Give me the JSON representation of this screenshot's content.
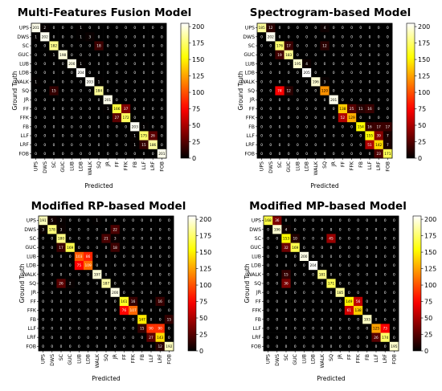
{
  "chart_data": [
    {
      "type": "heatmap",
      "title": "Multi-Features Fusion Model",
      "xlabel": "Predicted",
      "ylabel": "Ground Truth",
      "labels": [
        "UPS",
        "DWS",
        "SC",
        "GUC",
        "LUB",
        "LDB",
        "WALK",
        "SQ",
        "JR",
        "FF",
        "FFK",
        "FB",
        "LLF",
        "LRF",
        "FOB"
      ],
      "colorbar_ticks": [
        0,
        25,
        50,
        75,
        100,
        125,
        150,
        175,
        200
      ],
      "vmax": 205,
      "matrix": [
        [
          201,
          2,
          0,
          0,
          0,
          1,
          0,
          0,
          0,
          0,
          0,
          0,
          0,
          0,
          0
        ],
        [
          1,
          202,
          0,
          0,
          0,
          1,
          3,
          0,
          0,
          0,
          0,
          0,
          0,
          0,
          0
        ],
        [
          0,
          0,
          182,
          0,
          0,
          0,
          0,
          18,
          0,
          0,
          0,
          0,
          0,
          0,
          0
        ],
        [
          0,
          0,
          1,
          198,
          0,
          0,
          0,
          0,
          0,
          0,
          0,
          0,
          0,
          0,
          0
        ],
        [
          0,
          0,
          0,
          0,
          200,
          1,
          0,
          0,
          0,
          0,
          0,
          0,
          0,
          0,
          0
        ],
        [
          0,
          0,
          0,
          0,
          0,
          204,
          0,
          0,
          0,
          0,
          0,
          0,
          0,
          0,
          0
        ],
        [
          1,
          0,
          0,
          0,
          0,
          0,
          203,
          1,
          0,
          0,
          0,
          0,
          0,
          0,
          0
        ],
        [
          0,
          0,
          15,
          0,
          0,
          0,
          0,
          184,
          0,
          0,
          0,
          0,
          0,
          0,
          0
        ],
        [
          0,
          0,
          0,
          0,
          0,
          0,
          0,
          0,
          201,
          0,
          0,
          0,
          0,
          0,
          0
        ],
        [
          0,
          0,
          0,
          0,
          0,
          0,
          0,
          0,
          1,
          166,
          37,
          0,
          0,
          0,
          0
        ],
        [
          0,
          0,
          0,
          0,
          0,
          0,
          0,
          0,
          0,
          27,
          172,
          0,
          0,
          0,
          0
        ],
        [
          0,
          0,
          0,
          0,
          0,
          0,
          0,
          0,
          0,
          0,
          0,
          203,
          1,
          0,
          0
        ],
        [
          0,
          0,
          0,
          0,
          0,
          0,
          0,
          0,
          0,
          0,
          0,
          1,
          175,
          26,
          0
        ],
        [
          0,
          0,
          0,
          0,
          0,
          0,
          0,
          0,
          0,
          0,
          0,
          1,
          15,
          186,
          0
        ],
        [
          0,
          0,
          0,
          0,
          0,
          0,
          0,
          0,
          0,
          0,
          0,
          0,
          0,
          0,
          201
        ]
      ]
    },
    {
      "type": "heatmap",
      "title": "Spectrogram-based Model",
      "xlabel": "Predicted",
      "ylabel": "Ground Truth",
      "labels": [
        "UPS",
        "DWS",
        "SC",
        "GUC",
        "LUB",
        "LDB",
        "WALK",
        "SQ",
        "JR",
        "FF",
        "FFK",
        "FB",
        "LLF",
        "LRF",
        "FOB"
      ],
      "colorbar_ticks": [
        0,
        25,
        50,
        75,
        100,
        125,
        150,
        175,
        200
      ],
      "vmax": 205,
      "matrix": [
        [
          185,
          12,
          0,
          0,
          0,
          0,
          0,
          4,
          0,
          0,
          0,
          0,
          0,
          0,
          0
        ],
        [
          0,
          202,
          0,
          0,
          0,
          0,
          0,
          0,
          0,
          0,
          0,
          0,
          0,
          0,
          0
        ],
        [
          0,
          0,
          176,
          17,
          0,
          0,
          0,
          12,
          0,
          0,
          0,
          0,
          0,
          0,
          0
        ],
        [
          0,
          0,
          19,
          183,
          0,
          0,
          0,
          0,
          0,
          0,
          0,
          0,
          0,
          0,
          0
        ],
        [
          0,
          0,
          0,
          0,
          195,
          4,
          0,
          0,
          0,
          0,
          0,
          0,
          0,
          0,
          0
        ],
        [
          0,
          0,
          0,
          0,
          0,
          205,
          0,
          0,
          0,
          0,
          0,
          0,
          0,
          0,
          0
        ],
        [
          0,
          0,
          0,
          0,
          0,
          0,
          196,
          3,
          0,
          0,
          0,
          0,
          0,
          0,
          0
        ],
        [
          0,
          0,
          74,
          12,
          0,
          0,
          0,
          120,
          0,
          0,
          0,
          0,
          0,
          0,
          0
        ],
        [
          0,
          0,
          0,
          0,
          0,
          0,
          0,
          0,
          201,
          0,
          0,
          0,
          0,
          0,
          0
        ],
        [
          0,
          0,
          0,
          0,
          0,
          0,
          0,
          0,
          0,
          138,
          25,
          11,
          16,
          0,
          0
        ],
        [
          0,
          0,
          0,
          0,
          0,
          0,
          0,
          0,
          0,
          52,
          129,
          0,
          0,
          0,
          0
        ],
        [
          0,
          0,
          0,
          0,
          0,
          0,
          0,
          0,
          0,
          0,
          0,
          154,
          16,
          17,
          17
        ],
        [
          0,
          0,
          0,
          0,
          0,
          0,
          0,
          0,
          0,
          0,
          0,
          0,
          155,
          39,
          7
        ],
        [
          0,
          0,
          0,
          0,
          0,
          0,
          0,
          0,
          0,
          0,
          0,
          0,
          51,
          142,
          7
        ],
        [
          0,
          0,
          0,
          0,
          0,
          0,
          0,
          0,
          0,
          0,
          0,
          0,
          0,
          23,
          171
        ]
      ]
    },
    {
      "type": "heatmap",
      "title": "Modified RP-based Model",
      "xlabel": "Predicted",
      "ylabel": "Ground Truth",
      "labels": [
        "UPS",
        "DWS",
        "SC",
        "GUC",
        "LUB",
        "LDB",
        "WALK",
        "SQ",
        "JR",
        "FF",
        "FFK",
        "FB",
        "LLF",
        "LRF",
        "FOB"
      ],
      "colorbar_ticks": [
        0,
        25,
        50,
        75,
        100,
        125,
        150,
        175,
        200
      ],
      "vmax": 205,
      "matrix": [
        [
          191,
          5,
          2,
          0,
          0,
          0,
          1,
          0,
          0,
          0,
          0,
          0,
          0,
          0,
          0
        ],
        [
          3,
          178,
          3,
          0,
          0,
          0,
          0,
          0,
          22,
          0,
          0,
          0,
          0,
          0,
          0
        ],
        [
          0,
          0,
          180,
          0,
          0,
          0,
          0,
          21,
          3,
          0,
          0,
          0,
          0,
          0,
          0
        ],
        [
          0,
          0,
          17,
          169,
          0,
          0,
          0,
          0,
          18,
          0,
          0,
          0,
          0,
          0,
          0
        ],
        [
          0,
          0,
          0,
          0,
          103,
          86,
          0,
          0,
          0,
          0,
          0,
          0,
          0,
          0,
          0
        ],
        [
          0,
          0,
          0,
          0,
          75,
          109,
          0,
          0,
          0,
          0,
          0,
          0,
          0,
          0,
          0
        ],
        [
          0,
          0,
          0,
          0,
          0,
          0,
          197,
          0,
          0,
          0,
          0,
          0,
          0,
          0,
          0
        ],
        [
          0,
          0,
          26,
          2,
          0,
          0,
          0,
          187,
          0,
          0,
          0,
          0,
          0,
          0,
          0
        ],
        [
          0,
          0,
          0,
          0,
          0,
          0,
          0,
          0,
          200,
          0,
          0,
          0,
          0,
          0,
          0
        ],
        [
          0,
          0,
          0,
          0,
          0,
          0,
          0,
          0,
          0,
          161,
          16,
          0,
          0,
          16,
          0
        ],
        [
          0,
          0,
          0,
          0,
          0,
          0,
          0,
          0,
          0,
          76,
          107,
          0,
          0,
          0,
          0
        ],
        [
          0,
          0,
          0,
          0,
          0,
          0,
          0,
          0,
          0,
          0,
          0,
          147,
          0,
          0,
          15
        ],
        [
          0,
          0,
          0,
          0,
          0,
          0,
          0,
          0,
          0,
          0,
          0,
          15,
          90,
          90,
          0
        ],
        [
          0,
          0,
          0,
          0,
          0,
          0,
          0,
          0,
          0,
          0,
          0,
          0,
          27,
          143,
          0
        ],
        [
          0,
          0,
          0,
          0,
          0,
          0,
          0,
          0,
          0,
          0,
          0,
          0,
          0,
          12,
          192
        ]
      ]
    },
    {
      "type": "heatmap",
      "title": "Modified MP-based Model",
      "xlabel": "Predicted",
      "ylabel": "Ground Truth",
      "labels": [
        "UPS",
        "DWS",
        "SC",
        "GUC",
        "LUB",
        "LDB",
        "WALK",
        "SQ",
        "JR",
        "FF",
        "FFK",
        "FB",
        "LLF",
        "LRF",
        "FOB"
      ],
      "colorbar_ticks": [
        0,
        25,
        50,
        75,
        100,
        125,
        150,
        175,
        200
      ],
      "vmax": 205,
      "matrix": [
        [
          168,
          36,
          0,
          0,
          0,
          0,
          0,
          0,
          0,
          0,
          0,
          0,
          0,
          0,
          0
        ],
        [
          0,
          196,
          4,
          0,
          0,
          0,
          0,
          0,
          0,
          0,
          0,
          0,
          0,
          0,
          0
        ],
        [
          0,
          0,
          153,
          10,
          0,
          0,
          0,
          45,
          0,
          0,
          0,
          0,
          0,
          0,
          0
        ],
        [
          0,
          0,
          32,
          169,
          0,
          0,
          0,
          0,
          0,
          0,
          0,
          0,
          0,
          0,
          0
        ],
        [
          0,
          0,
          0,
          0,
          200,
          0,
          0,
          0,
          0,
          0,
          0,
          0,
          0,
          0,
          0
        ],
        [
          0,
          0,
          0,
          0,
          0,
          204,
          0,
          0,
          0,
          0,
          0,
          0,
          0,
          0,
          0
        ],
        [
          0,
          0,
          15,
          0,
          0,
          0,
          181,
          0,
          0,
          0,
          0,
          0,
          0,
          0,
          0
        ],
        [
          0,
          0,
          36,
          0,
          0,
          0,
          0,
          171,
          0,
          0,
          0,
          0,
          0,
          0,
          0
        ],
        [
          0,
          0,
          0,
          0,
          0,
          0,
          0,
          0,
          185,
          0,
          0,
          0,
          0,
          0,
          0
        ],
        [
          0,
          0,
          0,
          0,
          0,
          0,
          0,
          0,
          0,
          149,
          56,
          0,
          0,
          0,
          0
        ],
        [
          0,
          0,
          0,
          0,
          0,
          0,
          0,
          0,
          0,
          61,
          138,
          0,
          0,
          0,
          0
        ],
        [
          0,
          0,
          0,
          0,
          0,
          0,
          0,
          0,
          0,
          0,
          0,
          193,
          0,
          0,
          0
        ],
        [
          0,
          0,
          0,
          0,
          0,
          0,
          0,
          0,
          0,
          0,
          0,
          0,
          125,
          73,
          0
        ],
        [
          0,
          0,
          0,
          0,
          0,
          0,
          0,
          0,
          0,
          0,
          0,
          0,
          26,
          174,
          0
        ],
        [
          0,
          0,
          0,
          0,
          0,
          0,
          0,
          0,
          0,
          0,
          0,
          0,
          0,
          0,
          195
        ]
      ]
    }
  ]
}
